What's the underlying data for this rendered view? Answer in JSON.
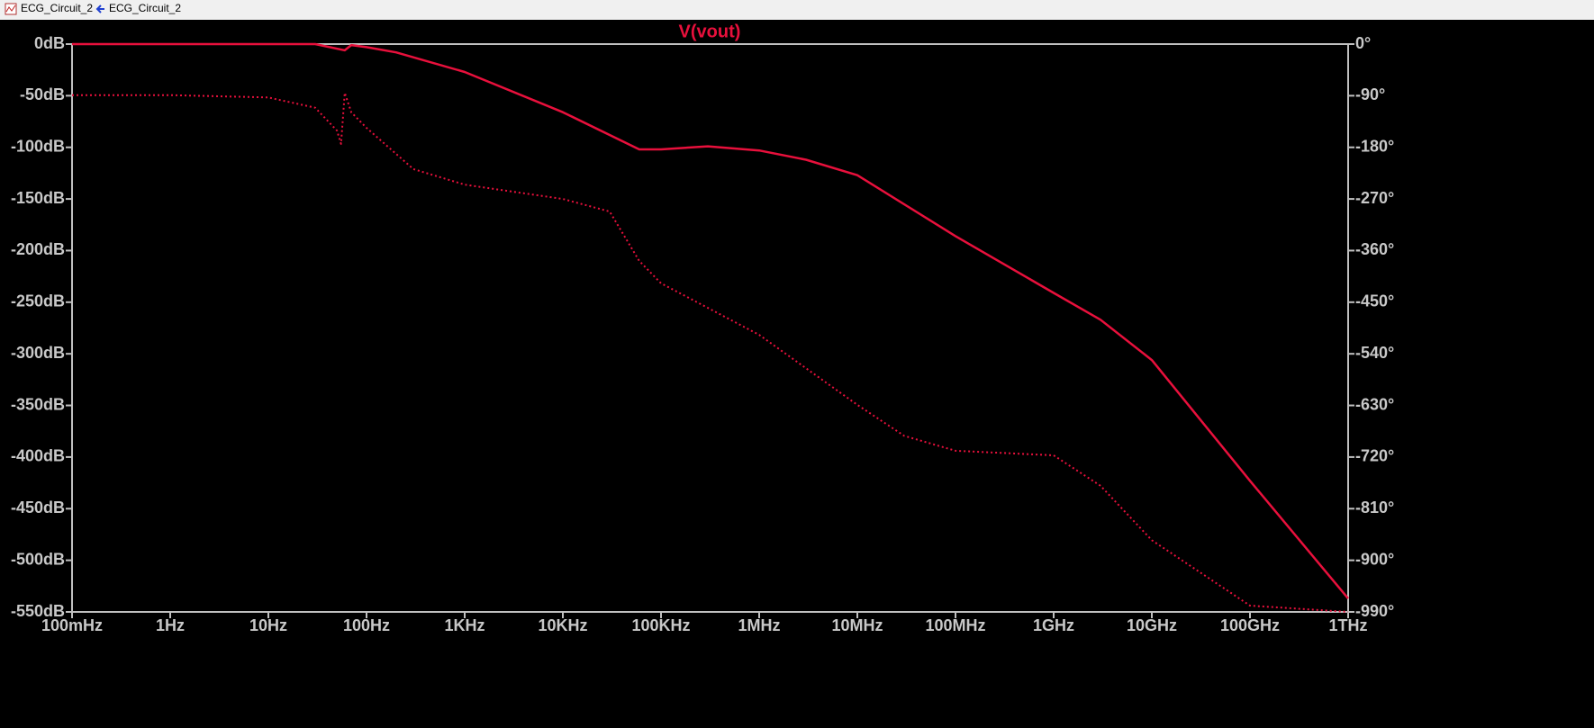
{
  "tabs": [
    "ECG_Circuit_2",
    "ECG_Circuit_2"
  ],
  "chart_data": {
    "type": "line",
    "title": "V(vout)",
    "log_x": true,
    "grid": false,
    "xlim": [
      0.1,
      1000000000000
    ],
    "xticks": [
      {
        "value": 0.1,
        "label": "100mHz"
      },
      {
        "value": 1,
        "label": "1Hz"
      },
      {
        "value": 10,
        "label": "10Hz"
      },
      {
        "value": 100,
        "label": "100Hz"
      },
      {
        "value": 1000,
        "label": "1KHz"
      },
      {
        "value": 10000,
        "label": "10KHz"
      },
      {
        "value": 100000,
        "label": "100KHz"
      },
      {
        "value": 1000000,
        "label": "1MHz"
      },
      {
        "value": 10000000,
        "label": "10MHz"
      },
      {
        "value": 100000000,
        "label": "100MHz"
      },
      {
        "value": 1000000000,
        "label": "1GHz"
      },
      {
        "value": 10000000000,
        "label": "10GHz"
      },
      {
        "value": 100000000000,
        "label": "100GHz"
      },
      {
        "value": 1000000000000,
        "label": "1THz"
      }
    ],
    "ylim": [
      -550,
      0
    ],
    "yticks": [
      {
        "value": 0,
        "label": "0dB"
      },
      {
        "value": -50,
        "label": "-50dB"
      },
      {
        "value": -100,
        "label": "-100dB"
      },
      {
        "value": -150,
        "label": "-150dB"
      },
      {
        "value": -200,
        "label": "-200dB"
      },
      {
        "value": -250,
        "label": "-250dB"
      },
      {
        "value": -300,
        "label": "-300dB"
      },
      {
        "value": -350,
        "label": "-350dB"
      },
      {
        "value": -400,
        "label": "-400dB"
      },
      {
        "value": -450,
        "label": "-450dB"
      },
      {
        "value": -500,
        "label": "-500dB"
      },
      {
        "value": -550,
        "label": "-550dB"
      }
    ],
    "y2lim": [
      -990,
      0
    ],
    "y2ticks": [
      {
        "value": 0,
        "label": "0°"
      },
      {
        "value": -90,
        "label": "-90°"
      },
      {
        "value": -180,
        "label": "-180°"
      },
      {
        "value": -270,
        "label": "-270°"
      },
      {
        "value": -360,
        "label": "-360°"
      },
      {
        "value": -450,
        "label": "-450°"
      },
      {
        "value": -540,
        "label": "-540°"
      },
      {
        "value": -630,
        "label": "-630°"
      },
      {
        "value": -720,
        "label": "-720°"
      },
      {
        "value": -810,
        "label": "-810°"
      },
      {
        "value": -900,
        "label": "-900°"
      },
      {
        "value": -990,
        "label": "-990°"
      }
    ],
    "series": [
      {
        "color": "#e8103c",
        "dash": "solid",
        "x": [
          0.1,
          30,
          60,
          70,
          100,
          200,
          1000,
          10000,
          60000,
          100000,
          300000,
          1000000,
          3000000,
          10000000,
          100000000,
          1000000000,
          3000000000,
          10000000000,
          100000000000,
          1000000000000
        ],
        "values": [
          0,
          0,
          -6,
          -1,
          -3,
          -8,
          -27,
          -66,
          -102,
          -102,
          -99,
          -103,
          -112,
          -127,
          -186,
          -241,
          -267,
          -306,
          -423,
          -537
        ]
      },
      {
        "color": "#e8103c",
        "dash": "dotted",
        "axis": "y2",
        "x": [
          0.1,
          1,
          10,
          30,
          50,
          55,
          60,
          70,
          100,
          300,
          1000,
          10000,
          30000,
          60000,
          100000,
          1000000,
          10000000,
          30000000,
          100000000,
          1000000000,
          3000000000,
          10000000000,
          100000000000,
          1000000000000
        ],
        "values": [
          -89,
          -89,
          -93,
          -111,
          -151,
          -174,
          -85,
          -119,
          -146,
          -218,
          -245,
          -270,
          -292,
          -378,
          -417,
          -507,
          -629,
          -683,
          -709,
          -717,
          -770,
          -865,
          -979,
          -990
        ]
      }
    ]
  }
}
